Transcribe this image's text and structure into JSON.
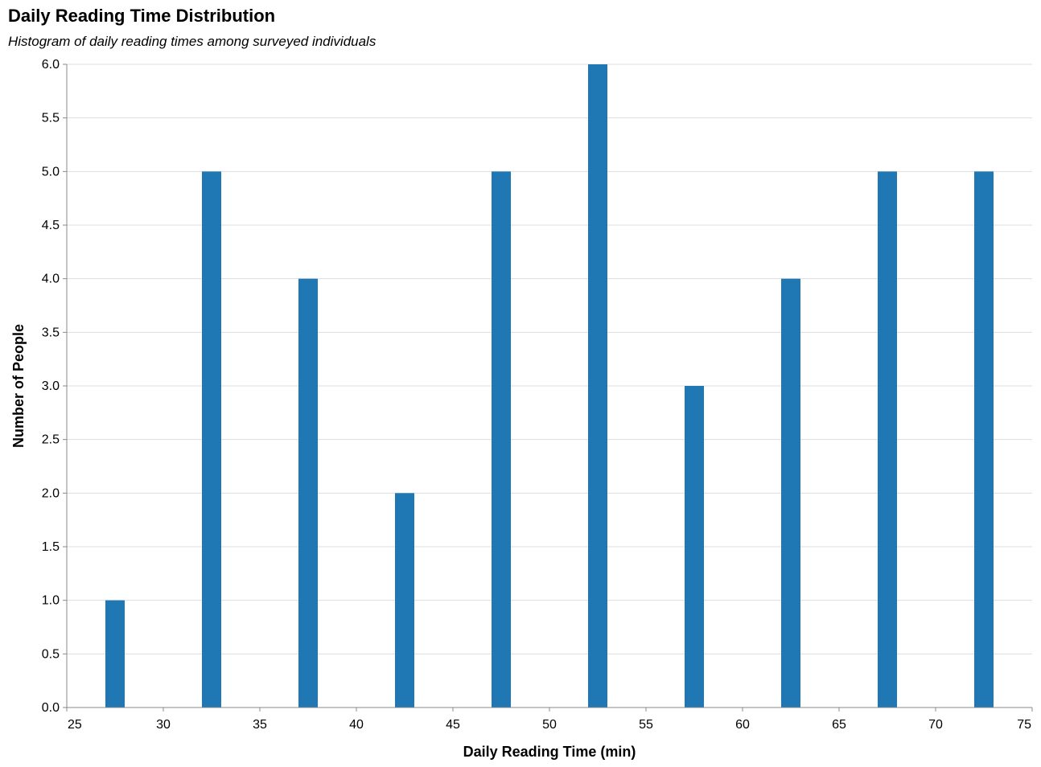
{
  "chart_data": {
    "type": "bar",
    "title": "Daily Reading Time Distribution",
    "subtitle": "Histogram of daily reading times among surveyed individuals",
    "xlabel": "Daily Reading Time (min)",
    "ylabel": "Number of People",
    "xlim": [
      25,
      75
    ],
    "ylim": [
      0,
      6
    ],
    "x_ticks": [
      25,
      30,
      35,
      40,
      45,
      50,
      55,
      60,
      65,
      70,
      75
    ],
    "y_ticks": [
      "0.0",
      "0.5",
      "1.0",
      "1.5",
      "2.0",
      "2.5",
      "3.0",
      "3.5",
      "4.0",
      "4.5",
      "5.0",
      "5.5",
      "6.0"
    ],
    "grid": true,
    "bar_color": "#1f77b4",
    "bins": [
      {
        "start": 27,
        "end": 28,
        "value": 1
      },
      {
        "start": 32,
        "end": 33,
        "value": 5
      },
      {
        "start": 37,
        "end": 38,
        "value": 4
      },
      {
        "start": 42,
        "end": 43,
        "value": 2
      },
      {
        "start": 47,
        "end": 48,
        "value": 5
      },
      {
        "start": 52,
        "end": 53,
        "value": 6
      },
      {
        "start": 57,
        "end": 58,
        "value": 3
      },
      {
        "start": 62,
        "end": 63,
        "value": 4
      },
      {
        "start": 67,
        "end": 68,
        "value": 5
      },
      {
        "start": 72,
        "end": 73,
        "value": 5
      }
    ]
  }
}
